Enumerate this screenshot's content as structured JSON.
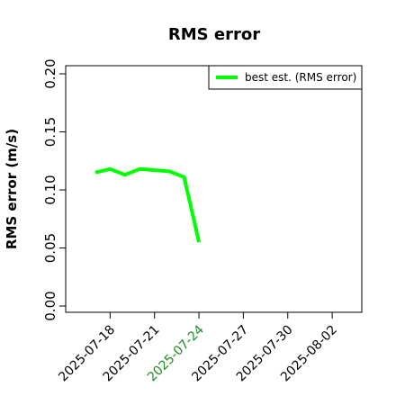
{
  "chart_data": {
    "type": "line",
    "title": "RMS error",
    "ylabel": "RMS error (m/s)",
    "x": [
      "2025-07-17",
      "2025-07-18",
      "2025-07-19",
      "2025-07-20",
      "2025-07-22",
      "2025-07-23",
      "2025-07-24"
    ],
    "series": [
      {
        "name": "best est. (RMS error)",
        "color": "#00ff00",
        "values": [
          0.115,
          0.118,
          0.113,
          0.118,
          0.116,
          0.111,
          0.055
        ]
      }
    ],
    "xlim": [
      "2025-07-15",
      "2025-08-04"
    ],
    "xticks": [
      "2025-07-18",
      "2025-07-21",
      "2025-07-24",
      "2025-07-27",
      "2025-07-30",
      "2025-08-02"
    ],
    "xtick_highlight": {
      "index": 2,
      "color": "#228b22"
    },
    "ylim": [
      -0.0054,
      0.207
    ],
    "yticks": [
      {
        "value": 0,
        "label": "0.00"
      },
      {
        "value": 0.05,
        "label": "0.05"
      },
      {
        "value": 0.1,
        "label": "0.10"
      },
      {
        "value": 0.15,
        "label": "0.15"
      },
      {
        "value": 0.2,
        "label": "0.20"
      }
    ],
    "legend": "top-right"
  }
}
